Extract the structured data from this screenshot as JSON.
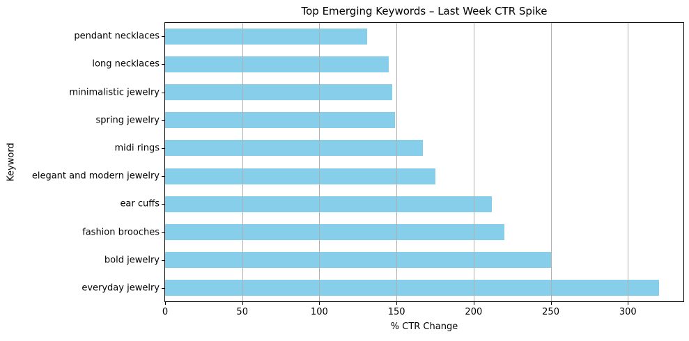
{
  "chart_data": {
    "type": "bar",
    "orientation": "horizontal",
    "title": "Top Emerging Keywords – Last Week CTR Spike",
    "xlabel": "% CTR Change",
    "ylabel": "Keyword",
    "categories": [
      "pendant necklaces",
      "long necklaces",
      "minimalistic jewelry",
      "spring jewelry",
      "midi rings",
      "elegant and modern jewelry",
      "ear cuffs",
      "fashion brooches",
      "bold jewelry",
      "everyday jewelry"
    ],
    "values": [
      131,
      145,
      147,
      149,
      167,
      175,
      212,
      220,
      250,
      320
    ],
    "xticks": [
      0,
      50,
      100,
      150,
      200,
      250,
      300
    ],
    "xlim": [
      0,
      336
    ],
    "grid": true,
    "grid_axis": "x",
    "legend_position": "none",
    "bar_color": "#87CEEB",
    "grid_color": "#b0b0b0",
    "spine_color": "#000000",
    "text_color": "#000000",
    "background_color": "#ffffff"
  }
}
